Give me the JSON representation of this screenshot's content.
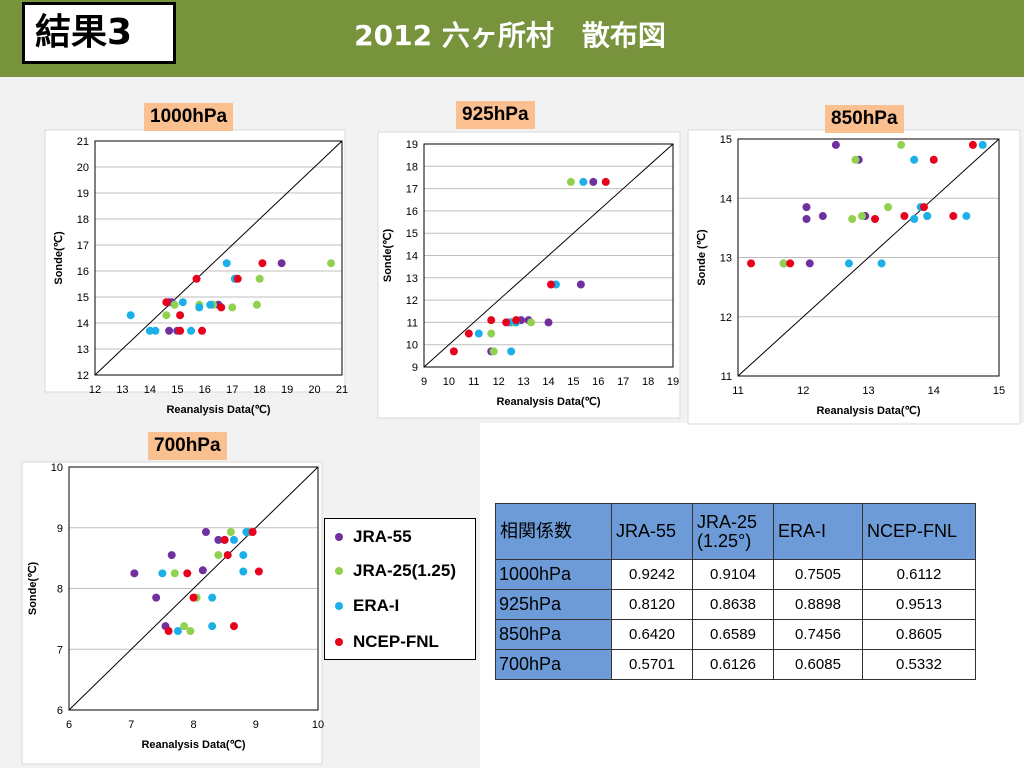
{
  "header": {
    "badge": "結果3",
    "title": "2012 六ヶ所村　散布図"
  },
  "colors": {
    "JRA-55": "#7030a0",
    "JRA-25(1.25)": "#92d050",
    "ERA-I": "#1cb0e8",
    "NCEP-FNL": "#e8001c",
    "topbar": "#77933c",
    "panel_label": "#fac090",
    "table_header": "#6c9bd8"
  },
  "legend": [
    {
      "name": "JRA-55",
      "color": "#7030a0"
    },
    {
      "name": "JRA-25(1.25)",
      "color": "#92d050"
    },
    {
      "name": "ERA-I",
      "color": "#1cb0e8"
    },
    {
      "name": "NCEP-FNL",
      "color": "#e8001c"
    }
  ],
  "table": {
    "headers": [
      "相関係数",
      "JRA-55",
      "JRA-25\n(1.25°)",
      "ERA-I",
      "NCEP-FNL"
    ],
    "rows": [
      {
        "level": "1000hPa",
        "values": [
          "0.9242",
          "0.9104",
          "0.7505",
          "0.6112"
        ]
      },
      {
        "level": "925hPa",
        "values": [
          "0.8120",
          "0.8638",
          "0.8898",
          "0.9513"
        ]
      },
      {
        "level": "850hPa",
        "values": [
          "0.6420",
          "0.6589",
          "0.7456",
          "0.8605"
        ]
      },
      {
        "level": "700hPa",
        "values": [
          "0.5701",
          "0.6126",
          "0.6085",
          "0.5332"
        ]
      }
    ]
  },
  "chart_data": [
    {
      "type": "scatter",
      "title": "1000hPa",
      "xlabel": "Reanalysis Data(℃)",
      "ylabel": "Sonde(℃)",
      "xlim": [
        12,
        21
      ],
      "ylim": [
        12,
        21
      ],
      "xstep": 1,
      "ystep": 1,
      "grid": "horizontal",
      "diagonal": true,
      "series": [
        {
          "name": "JRA-55",
          "points": [
            [
              14.7,
              14.8
            ],
            [
              14.8,
              14.8
            ],
            [
              14.7,
              13.7
            ],
            [
              15.0,
              13.7
            ],
            [
              16.3,
              14.7
            ],
            [
              16.5,
              14.7
            ],
            [
              17.1,
              15.7
            ],
            [
              18.8,
              16.3
            ]
          ]
        },
        {
          "name": "JRA-25(1.25)",
          "points": [
            [
              14.6,
              14.3
            ],
            [
              14.9,
              14.7
            ],
            [
              15.8,
              14.7
            ],
            [
              16.3,
              14.7
            ],
            [
              17.0,
              14.6
            ],
            [
              17.9,
              14.7
            ],
            [
              18.0,
              15.7
            ],
            [
              20.6,
              16.3
            ],
            [
              15.1,
              13.7
            ]
          ]
        },
        {
          "name": "ERA-I",
          "points": [
            [
              13.3,
              14.3
            ],
            [
              14.0,
              13.7
            ],
            [
              14.2,
              13.7
            ],
            [
              15.2,
              14.8
            ],
            [
              15.5,
              13.7
            ],
            [
              15.8,
              14.6
            ],
            [
              16.2,
              14.7
            ],
            [
              16.8,
              16.3
            ],
            [
              17.1,
              15.7
            ]
          ]
        },
        {
          "name": "NCEP-FNL",
          "points": [
            [
              14.6,
              14.8
            ],
            [
              15.1,
              14.3
            ],
            [
              15.1,
              13.7
            ],
            [
              15.7,
              15.7
            ],
            [
              15.9,
              13.7
            ],
            [
              16.6,
              14.6
            ],
            [
              17.2,
              15.7
            ],
            [
              18.1,
              16.3
            ]
          ]
        }
      ]
    },
    {
      "type": "scatter",
      "title": "925hPa",
      "xlabel": "Reanalysis Data(℃)",
      "ylabel": "Sonde(℃)",
      "xlim": [
        9,
        19
      ],
      "ylim": [
        9,
        19
      ],
      "xstep": 1,
      "ystep": 1,
      "grid": "horizontal",
      "diagonal": true,
      "series": [
        {
          "name": "JRA-55",
          "points": [
            [
              11.7,
              9.7
            ],
            [
              12.5,
              11.0
            ],
            [
              12.9,
              11.1
            ],
            [
              13.2,
              11.1
            ],
            [
              14.0,
              11.0
            ],
            [
              15.3,
              12.7
            ],
            [
              15.8,
              17.3
            ]
          ]
        },
        {
          "name": "JRA-25(1.25)",
          "points": [
            [
              11.8,
              9.7
            ],
            [
              11.7,
              10.5
            ],
            [
              12.6,
              11.0
            ],
            [
              13.3,
              11.0
            ],
            [
              14.9,
              17.3
            ]
          ]
        },
        {
          "name": "ERA-I",
          "points": [
            [
              11.2,
              10.5
            ],
            [
              12.4,
              11.0
            ],
            [
              12.5,
              9.7
            ],
            [
              12.7,
              11.0
            ],
            [
              14.3,
              12.7
            ],
            [
              15.4,
              17.3
            ]
          ]
        },
        {
          "name": "NCEP-FNL",
          "points": [
            [
              10.2,
              9.7
            ],
            [
              10.8,
              10.5
            ],
            [
              11.7,
              11.1
            ],
            [
              12.3,
              11.0
            ],
            [
              12.7,
              11.1
            ],
            [
              14.1,
              12.7
            ],
            [
              16.3,
              17.3
            ]
          ]
        }
      ]
    },
    {
      "type": "scatter",
      "title": "850hPa",
      "xlabel": "Reanalysis Data(℃)",
      "ylabel": "Sonde (℃)",
      "xlim": [
        11,
        15
      ],
      "ylim": [
        11,
        15
      ],
      "xstep": 1,
      "ystep": 1,
      "grid": "horizontal",
      "diagonal": true,
      "series": [
        {
          "name": "JRA-55",
          "points": [
            [
              11.7,
              12.9
            ],
            [
              12.1,
              12.9
            ],
            [
              12.05,
              13.65
            ],
            [
              12.05,
              13.85
            ],
            [
              12.3,
              13.7
            ],
            [
              12.5,
              14.9
            ],
            [
              12.85,
              14.65
            ],
            [
              12.95,
              13.7
            ]
          ]
        },
        {
          "name": "JRA-25(1.25)",
          "points": [
            [
              11.7,
              12.9
            ],
            [
              12.75,
              13.65
            ],
            [
              12.8,
              14.65
            ],
            [
              12.9,
              13.7
            ],
            [
              13.3,
              13.85
            ],
            [
              13.5,
              14.9
            ],
            [
              13.9,
              13.7
            ]
          ]
        },
        {
          "name": "ERA-I",
          "points": [
            [
              12.7,
              12.9
            ],
            [
              13.2,
              12.9
            ],
            [
              13.7,
              13.65
            ],
            [
              13.7,
              14.65
            ],
            [
              13.8,
              13.85
            ],
            [
              13.9,
              13.7
            ],
            [
              14.5,
              13.7
            ],
            [
              14.75,
              14.9
            ]
          ]
        },
        {
          "name": "NCEP-FNL",
          "points": [
            [
              11.2,
              12.9
            ],
            [
              11.8,
              12.9
            ],
            [
              13.1,
              13.65
            ],
            [
              13.55,
              13.7
            ],
            [
              13.85,
              13.85
            ],
            [
              14.0,
              14.65
            ],
            [
              14.3,
              13.7
            ],
            [
              14.6,
              14.9
            ]
          ]
        }
      ]
    },
    {
      "type": "scatter",
      "title": "700hPa",
      "xlabel": "Reanalysis Data(℃)",
      "ylabel": "Sonde(℃)",
      "xlim": [
        6,
        10
      ],
      "ylim": [
        6,
        10
      ],
      "xstep": 1,
      "ystep": 1,
      "grid": "horizontal",
      "diagonal": true,
      "series": [
        {
          "name": "JRA-55",
          "points": [
            [
              7.05,
              8.25
            ],
            [
              7.4,
              7.85
            ],
            [
              7.55,
              7.38
            ],
            [
              7.65,
              8.55
            ],
            [
              8.15,
              8.3
            ],
            [
              8.2,
              8.93
            ],
            [
              8.4,
              8.8
            ],
            [
              8.9,
              8.93
            ]
          ]
        },
        {
          "name": "JRA-25(1.25)",
          "points": [
            [
              7.7,
              8.25
            ],
            [
              7.85,
              7.38
            ],
            [
              7.95,
              7.3
            ],
            [
              8.05,
              7.85
            ],
            [
              8.4,
              8.55
            ],
            [
              8.6,
              8.93
            ],
            [
              8.9,
              8.93
            ]
          ]
        },
        {
          "name": "ERA-I",
          "points": [
            [
              7.5,
              8.25
            ],
            [
              7.75,
              7.3
            ],
            [
              8.3,
              7.85
            ],
            [
              8.3,
              7.38
            ],
            [
              8.5,
              8.8
            ],
            [
              8.65,
              8.8
            ],
            [
              8.8,
              8.28
            ],
            [
              8.8,
              8.55
            ],
            [
              8.85,
              8.93
            ]
          ]
        },
        {
          "name": "NCEP-FNL",
          "points": [
            [
              7.6,
              7.3
            ],
            [
              7.9,
              8.25
            ],
            [
              8.0,
              7.85
            ],
            [
              8.5,
              8.8
            ],
            [
              8.55,
              8.55
            ],
            [
              8.65,
              7.38
            ],
            [
              8.95,
              8.93
            ],
            [
              9.05,
              8.28
            ]
          ]
        }
      ]
    }
  ]
}
